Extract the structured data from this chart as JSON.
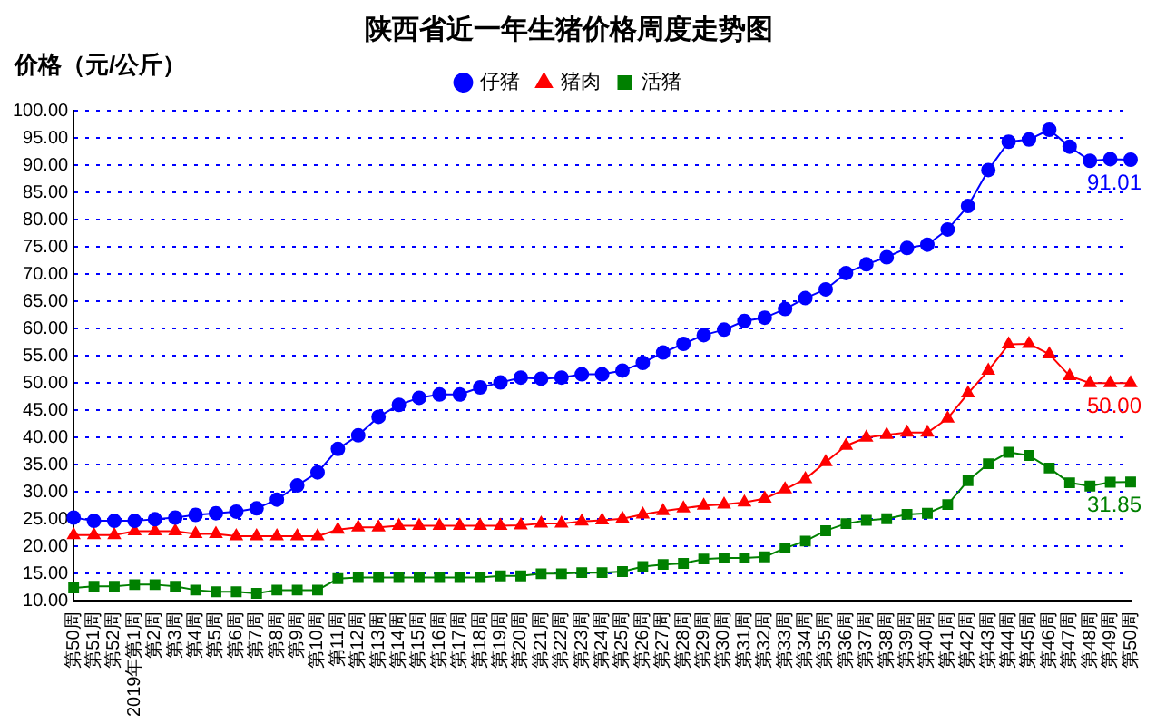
{
  "chart_data": {
    "type": "line",
    "title": "陕西省近一年生猪价格周度走势图",
    "ylabel": "价格（元/公斤）",
    "categories": [
      "第50周",
      "第51周",
      "第52周",
      "2019年第1周",
      "第2周",
      "第3周",
      "第4周",
      "第5周",
      "第6周",
      "第7周",
      "第8周",
      "第9周",
      "第10周",
      "第11周",
      "第12周",
      "第13周",
      "第14周",
      "第15周",
      "第16周",
      "第17周",
      "第18周",
      "第19周",
      "第20周",
      "第21周",
      "第22周",
      "第23周",
      "第24周",
      "第25周",
      "第26周",
      "第27周",
      "第28周",
      "第29周",
      "第30周",
      "第31周",
      "第32周",
      "第33周",
      "第34周",
      "第35周",
      "第36周",
      "第37周",
      "第38周",
      "第39周",
      "第40周",
      "第41周",
      "第42周",
      "第43周",
      "第44周",
      "第45周",
      "第46周",
      "第47周",
      "第48周",
      "第49周",
      "第50周"
    ],
    "series": [
      {
        "name": "仔猪",
        "color": "#0000ff",
        "marker": "circle",
        "values": [
          25.3,
          24.7,
          24.7,
          24.7,
          25.0,
          25.3,
          25.8,
          26.1,
          26.4,
          27.0,
          28.6,
          31.2,
          33.6,
          37.9,
          40.4,
          43.8,
          46.0,
          47.3,
          47.9,
          47.9,
          49.2,
          50.1,
          51.0,
          50.8,
          51.0,
          51.6,
          51.6,
          52.3,
          53.7,
          55.6,
          57.2,
          58.8,
          59.8,
          61.4,
          62.0,
          63.6,
          65.6,
          67.2,
          70.2,
          71.8,
          73.1,
          74.8,
          75.4,
          78.2,
          82.5,
          89.1,
          94.3,
          94.7,
          96.5,
          93.4,
          90.8,
          91.1,
          91.01
        ],
        "value_labels": [
          null,
          null,
          null,
          null,
          null,
          null,
          null,
          null,
          null,
          null,
          null,
          null,
          null,
          null,
          null,
          null,
          null,
          null,
          null,
          null,
          null,
          null,
          null,
          null,
          null,
          null,
          null,
          null,
          null,
          null,
          null,
          null,
          null,
          null,
          null,
          null,
          null,
          null,
          null,
          null,
          null,
          null,
          null,
          null,
          null,
          null,
          null,
          null,
          null,
          null,
          null,
          null,
          "91.01"
        ]
      },
      {
        "name": "猪肉",
        "color": "#ff0000",
        "marker": "triangle",
        "values": [
          22.1,
          22.1,
          22.1,
          22.8,
          22.8,
          22.8,
          22.3,
          22.3,
          21.9,
          21.9,
          21.9,
          21.9,
          21.9,
          23.1,
          23.5,
          23.5,
          23.8,
          23.8,
          23.8,
          23.8,
          23.8,
          23.8,
          23.9,
          24.2,
          24.2,
          24.6,
          24.8,
          25.1,
          25.9,
          26.5,
          27.0,
          27.5,
          27.7,
          28.1,
          28.8,
          30.5,
          32.4,
          35.5,
          38.5,
          40.0,
          40.5,
          40.9,
          40.9,
          43.5,
          48.1,
          52.3,
          57.1,
          57.2,
          55.3,
          51.3,
          50.0,
          50.0,
          50.0
        ],
        "value_labels": [
          null,
          null,
          null,
          null,
          null,
          null,
          null,
          null,
          null,
          null,
          null,
          null,
          null,
          null,
          null,
          null,
          null,
          null,
          null,
          null,
          null,
          null,
          null,
          null,
          null,
          null,
          null,
          null,
          null,
          null,
          null,
          null,
          null,
          null,
          null,
          null,
          null,
          null,
          null,
          null,
          null,
          null,
          null,
          null,
          null,
          null,
          null,
          null,
          null,
          null,
          null,
          null,
          "50.00"
        ]
      },
      {
        "name": "活猪",
        "color": "#008000",
        "marker": "square",
        "values": [
          12.4,
          12.7,
          12.7,
          13.0,
          13.0,
          12.7,
          12.0,
          11.7,
          11.7,
          11.4,
          12.0,
          12.0,
          12.0,
          14.1,
          14.3,
          14.3,
          14.3,
          14.3,
          14.3,
          14.3,
          14.3,
          14.6,
          14.6,
          15.0,
          15.0,
          15.2,
          15.2,
          15.4,
          16.3,
          16.7,
          16.9,
          17.7,
          17.9,
          17.9,
          18.1,
          19.7,
          21.0,
          22.9,
          24.2,
          24.8,
          25.1,
          25.9,
          26.1,
          27.7,
          32.1,
          35.2,
          37.3,
          36.7,
          34.4,
          31.7,
          31.1,
          31.8,
          31.85
        ],
        "value_labels": [
          null,
          null,
          null,
          null,
          null,
          null,
          null,
          null,
          null,
          null,
          null,
          null,
          null,
          null,
          null,
          null,
          null,
          null,
          null,
          null,
          null,
          null,
          null,
          null,
          null,
          null,
          null,
          null,
          null,
          null,
          null,
          null,
          null,
          null,
          null,
          null,
          null,
          null,
          null,
          null,
          null,
          null,
          null,
          null,
          null,
          null,
          null,
          null,
          null,
          null,
          null,
          null,
          "31.85"
        ]
      }
    ],
    "ylim": [
      10,
      100
    ],
    "yticks": [
      {
        "value": 10,
        "label": "10.00"
      },
      {
        "value": 15,
        "label": "15.00"
      },
      {
        "value": 20,
        "label": "20.00"
      },
      {
        "value": 25,
        "label": "25.00"
      },
      {
        "value": 30,
        "label": "30.00"
      },
      {
        "value": 35,
        "label": "35.00"
      },
      {
        "value": 40,
        "label": "40.00"
      },
      {
        "value": 45,
        "label": "45.00"
      },
      {
        "value": 50,
        "label": "50.00"
      },
      {
        "value": 55,
        "label": "55.00"
      },
      {
        "value": 60,
        "label": "60.00"
      },
      {
        "value": 65,
        "label": "65.00"
      },
      {
        "value": 70,
        "label": "70.00"
      },
      {
        "value": 75,
        "label": "75.00"
      },
      {
        "value": 80,
        "label": "80.00"
      },
      {
        "value": 85,
        "label": "85.00"
      },
      {
        "value": 90,
        "label": "90.00"
      },
      {
        "value": 95,
        "label": "95.00"
      },
      {
        "value": 100,
        "label": "100.00"
      }
    ],
    "grid": "y",
    "legend": "top",
    "line_style": "solid"
  }
}
